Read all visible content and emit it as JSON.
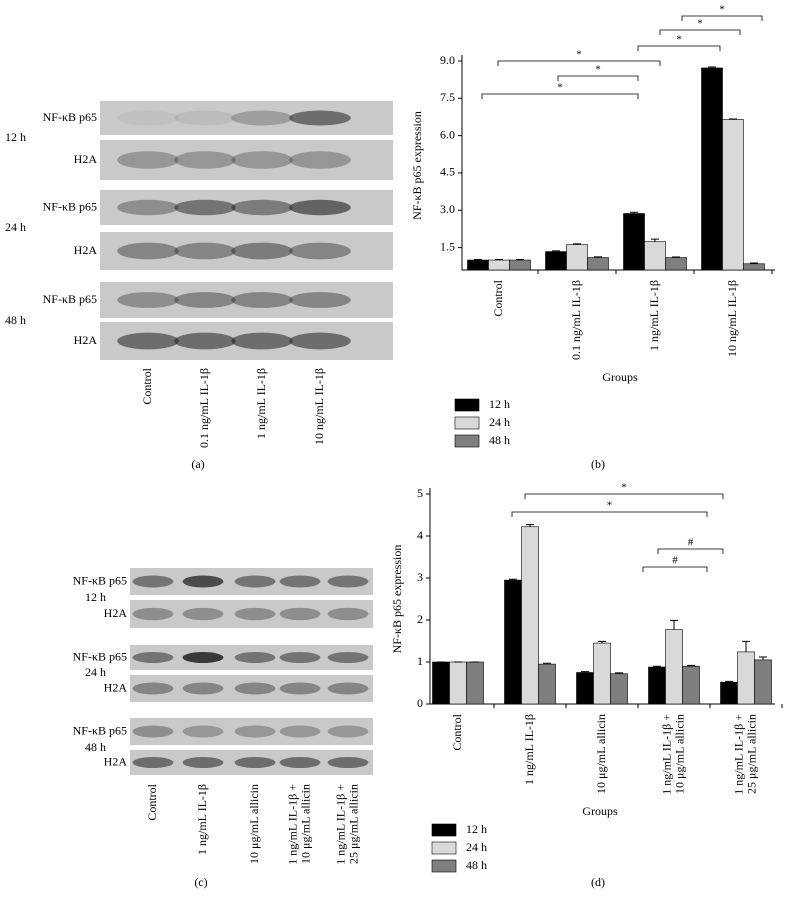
{
  "chart_data": [
    {
      "type": "bar",
      "panel_label": "(b)",
      "y_label": "NF-κB p65 expression",
      "x_label": "Groups",
      "categories": [
        "Control",
        "0.1 ng/mL IL-1β",
        "1 ng/mL IL-1β",
        "10 ng/mL IL-1β"
      ],
      "series": [
        {
          "name": "12 h",
          "color": "#000000",
          "values": [
            1.0,
            1.34,
            2.87,
            8.72
          ],
          "errors": [
            0.02,
            0.03,
            0.05,
            0.04
          ]
        },
        {
          "name": "24 h",
          "color": "#d9d9d9",
          "values": [
            1.0,
            1.62,
            1.74,
            6.65
          ],
          "errors": [
            0.02,
            0.03,
            0.1,
            0.02
          ]
        },
        {
          "name": "48 h",
          "color": "#7f7f7f",
          "values": [
            1.0,
            1.1,
            1.1,
            0.85
          ],
          "errors": [
            0.02,
            0.03,
            0.02,
            0.03
          ]
        }
      ],
      "ylim": [
        0.6,
        9.0
      ],
      "yticks": [
        1.5,
        {
          "value": 3,
          "label": "3.0"
        },
        4.5,
        {
          "value": 6,
          "label": "6.0"
        },
        7.5,
        {
          "value": 9,
          "label": "9.0"
        }
      ],
      "legend": "bottom-left",
      "annotations": [
        "*",
        "*",
        "*",
        "*",
        "*",
        "*"
      ]
    },
    {
      "type": "bar",
      "panel_label": "(d)",
      "y_label": "NF-κB p65 expression",
      "x_label": "Groups",
      "categories": [
        "Control",
        "1 ng/mL IL-1β",
        "10 μg/mL allicin",
        [
          "1 ng/mL IL-1β +",
          "10 μg/mL allicin"
        ],
        [
          "1 ng/mL IL-1β +",
          "25 μg/mL allicin"
        ]
      ],
      "series": [
        {
          "name": "12 h",
          "color": "#000000",
          "values": [
            1.0,
            2.95,
            0.75,
            0.88,
            0.52
          ],
          "errors": [
            0.0,
            0.02,
            0.02,
            0.02,
            0.02
          ]
        },
        {
          "name": "24 h",
          "color": "#d9d9d9",
          "values": [
            1.0,
            4.22,
            1.45,
            1.77,
            1.24
          ],
          "errors": [
            0.0,
            0.05,
            0.04,
            0.22,
            0.25
          ]
        },
        {
          "name": "48 h",
          "color": "#7f7f7f",
          "values": [
            1.0,
            0.95,
            0.72,
            0.9,
            1.05
          ],
          "errors": [
            0.0,
            0.02,
            0.02,
            0.02,
            0.07
          ]
        }
      ],
      "ylim": [
        0,
        5
      ],
      "yticks": [
        0,
        1,
        2,
        3,
        4,
        5
      ],
      "legend": "bottom-left",
      "annotations": [
        "*",
        "*",
        "#",
        "#"
      ]
    }
  ],
  "blots": [
    {
      "panel_label": "(a)",
      "times": [
        "12 h",
        "24 h",
        "48 h"
      ],
      "rows": [
        "NF-κB p65",
        "H2A"
      ],
      "lanes": [
        [
          "Control"
        ],
        [
          "0.1 ng/mL IL-1β"
        ],
        [
          "1 ng/mL IL-1β"
        ],
        [
          "10 ng/mL IL-1β"
        ]
      ]
    },
    {
      "panel_label": "(c)",
      "times": [
        "12 h",
        "24 h",
        "48 h"
      ],
      "rows": [
        "NF-κB p65",
        "H2A"
      ],
      "lanes": [
        [
          "Control"
        ],
        [
          "1 ng/mL IL-1β"
        ],
        [
          "10 μg/mL allicin"
        ],
        [
          "1 ng/mL IL-1β +",
          "10 μg/mL allicin"
        ],
        [
          "1 ng/mL IL-1β +",
          "25 μg/mL allicin"
        ]
      ]
    }
  ]
}
